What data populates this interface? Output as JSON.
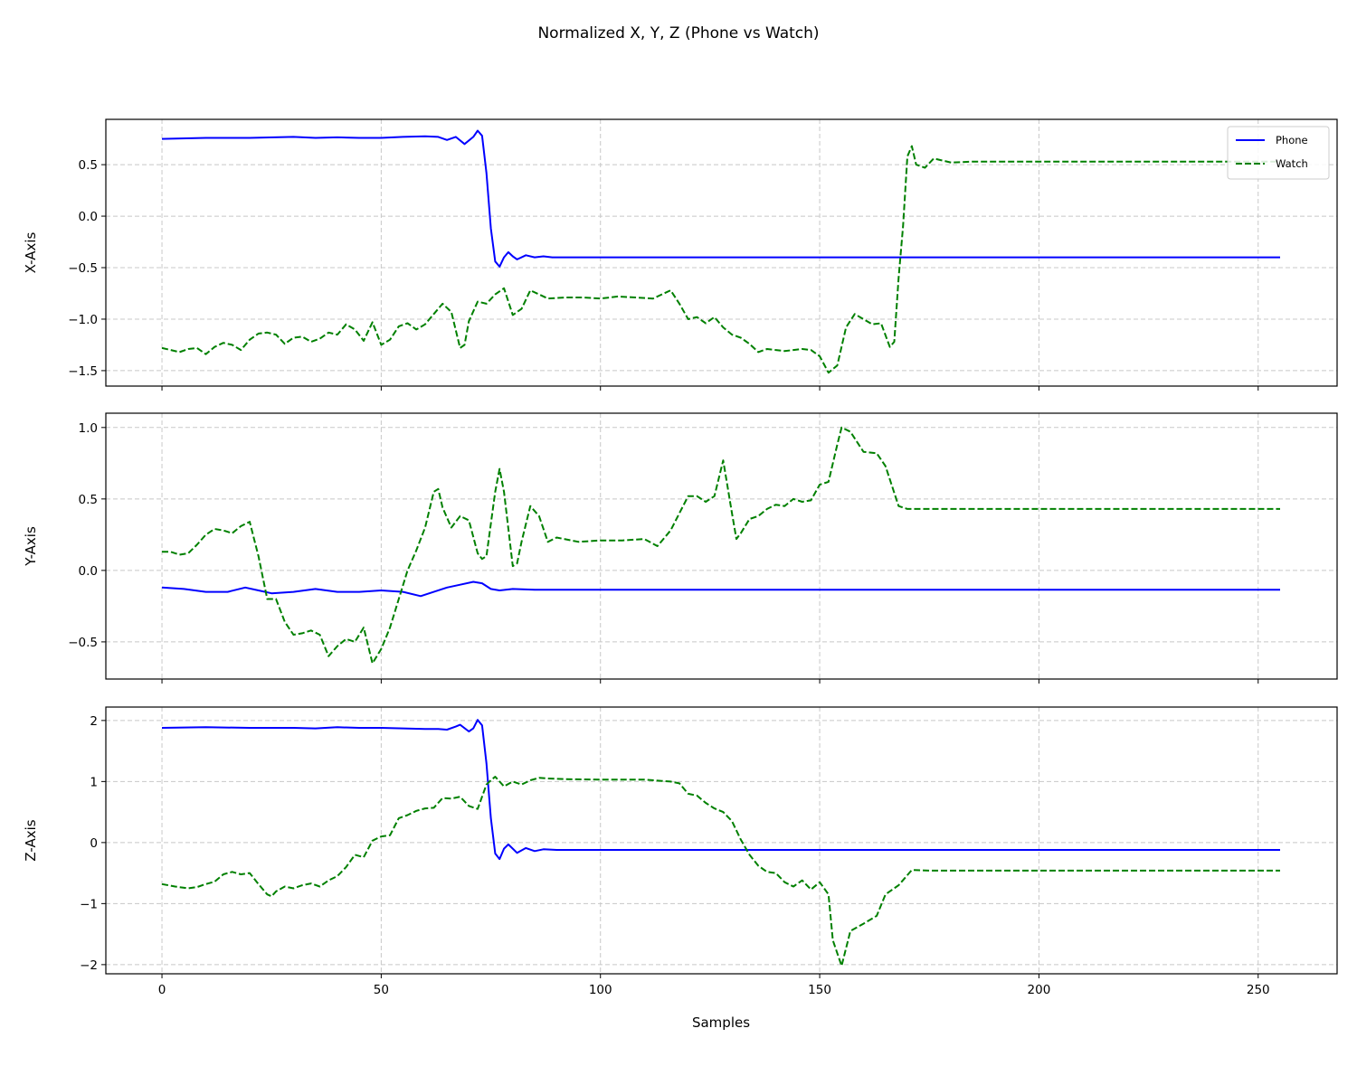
{
  "chart_data": {
    "type": "line",
    "title": "Normalized X, Y, Z (Phone vs Watch)",
    "xlabel": "Samples",
    "xlim": [
      -12.8,
      268
    ],
    "xticks": [
      0,
      50,
      100,
      150,
      200,
      250
    ],
    "grid": true,
    "legend": {
      "placement": "upper-right",
      "entries": [
        "Phone",
        "Watch"
      ]
    },
    "series_styles": {
      "Phone": {
        "color": "#0000ff",
        "dash": "solid"
      },
      "Watch": {
        "color": "#008000",
        "dash": "dashed"
      }
    },
    "subplots": [
      {
        "ylabel": "X-Axis",
        "ylim": [
          -1.65,
          0.94
        ],
        "yticks": [
          0.5,
          0.0,
          -0.5,
          -1.0,
          -1.5
        ],
        "ytick_labels": [
          "0.5",
          "0.0",
          "−0.5",
          "−1.0",
          "−1.5"
        ],
        "series": [
          {
            "name": "Phone",
            "x": [
              0,
              10,
              20,
              30,
              35,
              40,
              45,
              50,
              55,
              60,
              63,
              65,
              67,
              69,
              71,
              72,
              73,
              74,
              75,
              76,
              77,
              78,
              79,
              80,
              81,
              83,
              85,
              87,
              89,
              92,
              255
            ],
            "y": [
              0.75,
              0.76,
              0.76,
              0.77,
              0.76,
              0.765,
              0.76,
              0.76,
              0.77,
              0.775,
              0.77,
              0.74,
              0.77,
              0.7,
              0.77,
              0.83,
              0.78,
              0.42,
              -0.12,
              -0.44,
              -0.49,
              -0.4,
              -0.35,
              -0.39,
              -0.42,
              -0.38,
              -0.4,
              -0.39,
              -0.4,
              -0.4,
              -0.4
            ]
          },
          {
            "name": "Watch",
            "x": [
              0,
              2,
              4,
              6,
              8,
              10,
              12,
              14,
              16,
              18,
              20,
              22,
              24,
              26,
              28,
              30,
              32,
              34,
              36,
              38,
              40,
              42,
              44,
              46,
              48,
              50,
              52,
              54,
              56,
              58,
              60,
              62,
              64,
              66,
              68,
              69,
              70,
              72,
              74,
              76,
              78,
              80,
              82,
              84,
              86,
              88,
              92,
              96,
              100,
              104,
              108,
              112,
              114,
              116,
              118,
              120,
              122,
              124,
              126,
              128,
              130,
              132,
              134,
              136,
              138,
              140,
              142,
              144,
              146,
              148,
              150,
              152,
              154,
              156,
              158,
              160,
              162,
              164,
              166,
              167,
              168,
              169,
              170,
              171,
              172,
              174,
              176,
              180,
              185,
              255
            ],
            "y": [
              -1.28,
              -1.3,
              -1.32,
              -1.29,
              -1.28,
              -1.34,
              -1.27,
              -1.23,
              -1.25,
              -1.3,
              -1.2,
              -1.14,
              -1.13,
              -1.15,
              -1.24,
              -1.18,
              -1.17,
              -1.22,
              -1.19,
              -1.13,
              -1.15,
              -1.05,
              -1.1,
              -1.21,
              -1.03,
              -1.25,
              -1.2,
              -1.07,
              -1.04,
              -1.1,
              -1.05,
              -0.95,
              -0.85,
              -0.93,
              -1.28,
              -1.25,
              -1.02,
              -0.83,
              -0.85,
              -0.76,
              -0.7,
              -0.96,
              -0.9,
              -0.72,
              -0.76,
              -0.8,
              -0.79,
              -0.79,
              -0.8,
              -0.78,
              -0.79,
              -0.8,
              -0.76,
              -0.72,
              -0.85,
              -1.0,
              -0.98,
              -1.04,
              -0.98,
              -1.08,
              -1.15,
              -1.18,
              -1.24,
              -1.32,
              -1.29,
              -1.3,
              -1.31,
              -1.3,
              -1.29,
              -1.3,
              -1.36,
              -1.52,
              -1.45,
              -1.08,
              -0.95,
              -1.0,
              -1.05,
              -1.04,
              -1.27,
              -1.22,
              -0.6,
              -0.1,
              0.58,
              0.68,
              0.5,
              0.47,
              0.56,
              0.52,
              0.53,
              0.53
            ]
          }
        ]
      },
      {
        "ylabel": "Y-Axis",
        "ylim": [
          -0.76,
          1.1
        ],
        "yticks": [
          1.0,
          0.5,
          0.0,
          -0.5
        ],
        "ytick_labels": [
          "1.0",
          "0.5",
          "0.0",
          "−0.5"
        ],
        "series": [
          {
            "name": "Phone",
            "x": [
              0,
              5,
              10,
              15,
              19,
              22,
              25,
              30,
              35,
              40,
              45,
              50,
              55,
              59,
              62,
              65,
              68,
              71,
              73,
              75,
              77,
              80,
              85,
              255
            ],
            "y": [
              -0.12,
              -0.13,
              -0.15,
              -0.15,
              -0.12,
              -0.14,
              -0.16,
              -0.15,
              -0.13,
              -0.15,
              -0.15,
              -0.14,
              -0.15,
              -0.18,
              -0.15,
              -0.12,
              -0.1,
              -0.08,
              -0.09,
              -0.13,
              -0.14,
              -0.13,
              -0.135,
              -0.135
            ]
          },
          {
            "name": "Watch",
            "x": [
              0,
              2,
              4,
              6,
              8,
              10,
              12,
              14,
              16,
              18,
              20,
              22,
              24,
              26,
              28,
              30,
              32,
              34,
              36,
              38,
              40,
              42,
              44,
              46,
              48,
              50,
              52,
              54,
              56,
              58,
              60,
              62,
              63,
              64,
              66,
              68,
              70,
              72,
              73,
              74,
              76,
              77,
              78,
              80,
              81,
              82,
              84,
              86,
              88,
              90,
              95,
              100,
              105,
              110,
              113,
              116,
              118,
              120,
              122,
              124,
              126,
              128,
              130,
              131,
              132,
              134,
              136,
              138,
              140,
              142,
              144,
              146,
              148,
              150,
              152,
              154,
              155,
              157,
              160,
              163,
              165,
              168,
              170,
              175,
              255
            ],
            "y": [
              0.13,
              0.13,
              0.11,
              0.12,
              0.18,
              0.25,
              0.29,
              0.28,
              0.26,
              0.31,
              0.34,
              0.1,
              -0.2,
              -0.2,
              -0.36,
              -0.45,
              -0.44,
              -0.42,
              -0.45,
              -0.6,
              -0.53,
              -0.48,
              -0.5,
              -0.4,
              -0.65,
              -0.55,
              -0.4,
              -0.2,
              0.0,
              0.14,
              0.3,
              0.55,
              0.57,
              0.44,
              0.3,
              0.38,
              0.35,
              0.12,
              0.08,
              0.1,
              0.55,
              0.71,
              0.55,
              0.03,
              0.05,
              0.2,
              0.45,
              0.38,
              0.2,
              0.23,
              0.2,
              0.21,
              0.21,
              0.22,
              0.17,
              0.28,
              0.4,
              0.52,
              0.52,
              0.48,
              0.52,
              0.77,
              0.4,
              0.22,
              0.26,
              0.36,
              0.38,
              0.43,
              0.46,
              0.45,
              0.5,
              0.48,
              0.49,
              0.6,
              0.62,
              0.88,
              1.0,
              0.97,
              0.83,
              0.82,
              0.73,
              0.45,
              0.43,
              0.43,
              0.43
            ]
          }
        ]
      },
      {
        "ylabel": "Z-Axis",
        "ylim": [
          -2.15,
          2.22
        ],
        "yticks": [
          2,
          1,
          0,
          -1,
          -2
        ],
        "ytick_labels": [
          "2",
          "1",
          "0",
          "−1",
          "−2"
        ],
        "series": [
          {
            "name": "Phone",
            "x": [
              0,
              10,
              20,
              30,
              35,
              40,
              45,
              50,
              55,
              60,
              63,
              65,
              67,
              68,
              70,
              71,
              72,
              73,
              74,
              75,
              76,
              77,
              78,
              79,
              80,
              81,
              83,
              85,
              87,
              90,
              255
            ],
            "y": [
              1.88,
              1.89,
              1.88,
              1.88,
              1.87,
              1.89,
              1.88,
              1.88,
              1.87,
              1.86,
              1.86,
              1.85,
              1.9,
              1.93,
              1.82,
              1.87,
              2.01,
              1.92,
              1.3,
              0.4,
              -0.18,
              -0.27,
              -0.1,
              -0.03,
              -0.1,
              -0.17,
              -0.09,
              -0.14,
              -0.11,
              -0.12,
              -0.12
            ]
          },
          {
            "name": "Watch",
            "x": [
              0,
              3,
              6,
              8,
              10,
              12,
              14,
              16,
              18,
              20,
              22,
              24,
              25,
              26,
              28,
              30,
              32,
              34,
              36,
              38,
              40,
              42,
              44,
              46,
              48,
              50,
              52,
              54,
              56,
              58,
              60,
              62,
              64,
              66,
              68,
              70,
              72,
              74,
              75,
              76,
              78,
              80,
              82,
              84,
              86,
              88,
              92,
              100,
              110,
              114,
              116,
              118,
              120,
              122,
              124,
              126,
              128,
              130,
              132,
              134,
              136,
              138,
              140,
              142,
              144,
              146,
              148,
              150,
              152,
              153,
              155,
              157,
              160,
              163,
              165,
              168,
              171,
              175,
              255
            ],
            "y": [
              -0.68,
              -0.72,
              -0.75,
              -0.73,
              -0.68,
              -0.64,
              -0.52,
              -0.48,
              -0.52,
              -0.5,
              -0.68,
              -0.85,
              -0.88,
              -0.8,
              -0.72,
              -0.75,
              -0.7,
              -0.67,
              -0.72,
              -0.62,
              -0.55,
              -0.4,
              -0.2,
              -0.24,
              0.03,
              0.1,
              0.12,
              0.4,
              0.45,
              0.52,
              0.56,
              0.57,
              0.73,
              0.72,
              0.75,
              0.6,
              0.55,
              0.95,
              1.02,
              1.08,
              0.92,
              1.0,
              0.95,
              1.02,
              1.06,
              1.05,
              1.04,
              1.03,
              1.03,
              1.01,
              1.0,
              0.97,
              0.8,
              0.77,
              0.65,
              0.56,
              0.5,
              0.35,
              0.05,
              -0.2,
              -0.38,
              -0.48,
              -0.5,
              -0.65,
              -0.72,
              -0.62,
              -0.77,
              -0.65,
              -0.85,
              -1.6,
              -2.02,
              -1.45,
              -1.33,
              -1.2,
              -0.85,
              -0.7,
              -0.45,
              -0.46,
              -0.46
            ]
          }
        ]
      }
    ]
  }
}
